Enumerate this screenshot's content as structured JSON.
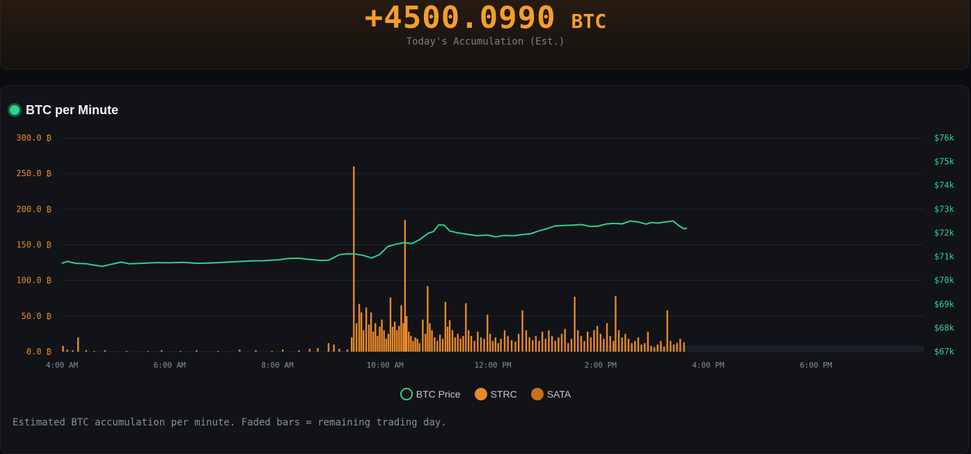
{
  "summary": {
    "total_value": "+4500.0990",
    "total_unit": "BTC",
    "subtitle": "Today's Accumulation (Est.)"
  },
  "panel": {
    "title": "BTC per Minute",
    "footnote": "Estimated BTC accumulation per minute. Faded bars = remaining trading day."
  },
  "legend": [
    {
      "label": "BTC Price",
      "color": "#2ed38a",
      "style": "ring"
    },
    {
      "label": "STRC",
      "color": "#e8892a",
      "style": "dot"
    },
    {
      "label": "SATA",
      "color": "#c9711a",
      "style": "dot"
    }
  ],
  "colors": {
    "price_line": "#2ed38a",
    "bars": "#e8892a",
    "left_axis": "#e8892a",
    "right_axis": "#2ed38a",
    "grid": "#23262d",
    "faded_area": "#1a1f27"
  },
  "chart_data": {
    "type": "bar",
    "x_unit": "hours",
    "x_domain": [
      4,
      20
    ],
    "x_ticks": [
      {
        "value": 4,
        "label": "4:00 AM"
      },
      {
        "value": 6,
        "label": "6:00 AM"
      },
      {
        "value": 8,
        "label": "8:00 AM"
      },
      {
        "value": 10,
        "label": "10:00 AM"
      },
      {
        "value": 12,
        "label": "12:00 PM"
      },
      {
        "value": 14,
        "label": "2:00 PM"
      },
      {
        "value": 16,
        "label": "4:00 PM"
      },
      {
        "value": 18,
        "label": "6:00 PM"
      }
    ],
    "y_left": {
      "ylim": [
        0,
        300
      ],
      "ticks": [
        {
          "value": 0,
          "label": "0.0 ₿"
        },
        {
          "value": 50,
          "label": "50.0 ₿"
        },
        {
          "value": 100,
          "label": "100.0 ₿"
        },
        {
          "value": 150,
          "label": "150.0 ₿"
        },
        {
          "value": 200,
          "label": "200.0 ₿"
        },
        {
          "value": 250,
          "label": "250.0 ₿"
        },
        {
          "value": 300,
          "label": "300.0 ₿"
        }
      ]
    },
    "y_right": {
      "ylim": [
        67000,
        76000
      ],
      "ticks": [
        {
          "value": 67000,
          "label": "$67k"
        },
        {
          "value": 68000,
          "label": "$68k"
        },
        {
          "value": 69000,
          "label": "$69k"
        },
        {
          "value": 70000,
          "label": "$70k"
        },
        {
          "value": 71000,
          "label": "$71k"
        },
        {
          "value": 72000,
          "label": "$72k"
        },
        {
          "value": 73000,
          "label": "$73k"
        },
        {
          "value": 74000,
          "label": "$74k"
        },
        {
          "value": 75000,
          "label": "$75k"
        },
        {
          "value": 76000,
          "label": "$76k"
        }
      ]
    },
    "faded_from": 14.0,
    "series": [
      {
        "name": "BTC Price",
        "type": "line",
        "axis": "right",
        "points": [
          [
            4.0,
            70720
          ],
          [
            4.1,
            70800
          ],
          [
            4.25,
            70720
          ],
          [
            4.45,
            70700
          ],
          [
            4.6,
            70640
          ],
          [
            4.75,
            70590
          ],
          [
            4.9,
            70670
          ],
          [
            5.0,
            70720
          ],
          [
            5.1,
            70770
          ],
          [
            5.25,
            70700
          ],
          [
            5.5,
            70720
          ],
          [
            5.75,
            70750
          ],
          [
            6.0,
            70740
          ],
          [
            6.25,
            70760
          ],
          [
            6.5,
            70720
          ],
          [
            6.75,
            70730
          ],
          [
            7.0,
            70760
          ],
          [
            7.25,
            70790
          ],
          [
            7.5,
            70820
          ],
          [
            7.75,
            70830
          ],
          [
            8.0,
            70860
          ],
          [
            8.2,
            70920
          ],
          [
            8.4,
            70930
          ],
          [
            8.6,
            70880
          ],
          [
            8.8,
            70840
          ],
          [
            8.95,
            70850
          ],
          [
            9.05,
            70960
          ],
          [
            9.15,
            71080
          ],
          [
            9.3,
            71120
          ],
          [
            9.45,
            71110
          ],
          [
            9.6,
            71050
          ],
          [
            9.75,
            70940
          ],
          [
            9.9,
            71090
          ],
          [
            10.05,
            71430
          ],
          [
            10.2,
            71520
          ],
          [
            10.35,
            71590
          ],
          [
            10.5,
            71550
          ],
          [
            10.65,
            71730
          ],
          [
            10.8,
            71980
          ],
          [
            10.9,
            72060
          ],
          [
            11.0,
            72340
          ],
          [
            11.1,
            72320
          ],
          [
            11.2,
            72080
          ],
          [
            11.35,
            72000
          ],
          [
            11.5,
            71950
          ],
          [
            11.7,
            71880
          ],
          [
            11.9,
            71910
          ],
          [
            12.05,
            71830
          ],
          [
            12.2,
            71890
          ],
          [
            12.4,
            71880
          ],
          [
            12.55,
            71930
          ],
          [
            12.7,
            71960
          ],
          [
            12.85,
            72080
          ],
          [
            13.0,
            72170
          ],
          [
            13.15,
            72290
          ],
          [
            13.3,
            72310
          ],
          [
            13.5,
            72330
          ],
          [
            13.65,
            72350
          ],
          [
            13.8,
            72270
          ],
          [
            13.95,
            72280
          ],
          [
            14.1,
            72370
          ],
          [
            14.25,
            72400
          ],
          [
            14.4,
            72380
          ],
          [
            14.55,
            72500
          ],
          [
            14.7,
            72460
          ],
          [
            14.85,
            72370
          ],
          [
            14.95,
            72440
          ],
          [
            15.05,
            72410
          ],
          [
            15.2,
            72460
          ],
          [
            15.35,
            72500
          ],
          [
            15.45,
            72310
          ],
          [
            15.55,
            72170
          ],
          [
            15.6,
            72200
          ]
        ]
      },
      {
        "name": "STRC",
        "type": "bar",
        "axis": "left",
        "points": [
          [
            4.02,
            8
          ],
          [
            4.1,
            3
          ],
          [
            4.2,
            2
          ],
          [
            4.3,
            20
          ],
          [
            4.45,
            2
          ],
          [
            4.6,
            1
          ],
          [
            4.8,
            2
          ],
          [
            5.2,
            1
          ],
          [
            5.6,
            1
          ],
          [
            5.85,
            2
          ],
          [
            6.2,
            1
          ],
          [
            6.5,
            2
          ],
          [
            6.9,
            1
          ],
          [
            7.3,
            3
          ],
          [
            7.6,
            2
          ],
          [
            7.9,
            1
          ],
          [
            8.1,
            3
          ],
          [
            8.4,
            2
          ],
          [
            8.6,
            4
          ],
          [
            8.75,
            5
          ],
          [
            8.95,
            12
          ],
          [
            9.05,
            10
          ],
          [
            9.15,
            4
          ],
          [
            9.3,
            3
          ],
          [
            9.38,
            20
          ],
          [
            9.42,
            260
          ],
          [
            9.47,
            40
          ],
          [
            9.52,
            67
          ],
          [
            9.56,
            55
          ],
          [
            9.6,
            30
          ],
          [
            9.65,
            62
          ],
          [
            9.7,
            38
          ],
          [
            9.74,
            55
          ],
          [
            9.78,
            28
          ],
          [
            9.82,
            40
          ],
          [
            9.86,
            22
          ],
          [
            9.9,
            35
          ],
          [
            9.94,
            45
          ],
          [
            9.98,
            30
          ],
          [
            10.02,
            18
          ],
          [
            10.06,
            25
          ],
          [
            10.1,
            76
          ],
          [
            10.14,
            35
          ],
          [
            10.18,
            42
          ],
          [
            10.22,
            30
          ],
          [
            10.26,
            36
          ],
          [
            10.3,
            65
          ],
          [
            10.34,
            40
          ],
          [
            10.37,
            185
          ],
          [
            10.4,
            50
          ],
          [
            10.44,
            28
          ],
          [
            10.48,
            22
          ],
          [
            10.52,
            15
          ],
          [
            10.56,
            20
          ],
          [
            10.6,
            18
          ],
          [
            10.64,
            12
          ],
          [
            10.7,
            45
          ],
          [
            10.75,
            25
          ],
          [
            10.79,
            92
          ],
          [
            10.83,
            40
          ],
          [
            10.87,
            30
          ],
          [
            10.92,
            20
          ],
          [
            10.97,
            15
          ],
          [
            11.02,
            24
          ],
          [
            11.07,
            18
          ],
          [
            11.12,
            70
          ],
          [
            11.16,
            35
          ],
          [
            11.2,
            44
          ],
          [
            11.25,
            30
          ],
          [
            11.3,
            20
          ],
          [
            11.35,
            25
          ],
          [
            11.4,
            18
          ],
          [
            11.45,
            22
          ],
          [
            11.5,
            68
          ],
          [
            11.55,
            30
          ],
          [
            11.6,
            22
          ],
          [
            11.66,
            15
          ],
          [
            11.72,
            28
          ],
          [
            11.78,
            20
          ],
          [
            11.84,
            18
          ],
          [
            11.9,
            52
          ],
          [
            11.95,
            25
          ],
          [
            12.0,
            15
          ],
          [
            12.05,
            20
          ],
          [
            12.1,
            12
          ],
          [
            12.15,
            18
          ],
          [
            12.22,
            30
          ],
          [
            12.28,
            22
          ],
          [
            12.35,
            16
          ],
          [
            12.42,
            14
          ],
          [
            12.48,
            25
          ],
          [
            12.55,
            58
          ],
          [
            12.62,
            30
          ],
          [
            12.68,
            20
          ],
          [
            12.74,
            16
          ],
          [
            12.8,
            22
          ],
          [
            12.86,
            15
          ],
          [
            12.92,
            28
          ],
          [
            12.98,
            18
          ],
          [
            13.04,
            30
          ],
          [
            13.1,
            22
          ],
          [
            13.16,
            15
          ],
          [
            13.22,
            20
          ],
          [
            13.28,
            25
          ],
          [
            13.34,
            32
          ],
          [
            13.4,
            12
          ],
          [
            13.46,
            18
          ],
          [
            13.52,
            77
          ],
          [
            13.58,
            30
          ],
          [
            13.64,
            22
          ],
          [
            13.7,
            15
          ],
          [
            13.76,
            28
          ],
          [
            13.82,
            20
          ],
          [
            13.88,
            30
          ],
          [
            13.94,
            36
          ],
          [
            14.0,
            25
          ],
          [
            14.06,
            18
          ],
          [
            14.12,
            40
          ],
          [
            14.18,
            22
          ],
          [
            14.24,
            15
          ],
          [
            14.28,
            78
          ],
          [
            14.34,
            30
          ],
          [
            14.4,
            20
          ],
          [
            14.46,
            25
          ],
          [
            14.52,
            18
          ],
          [
            14.58,
            12
          ],
          [
            14.64,
            15
          ],
          [
            14.7,
            20
          ],
          [
            14.76,
            10
          ],
          [
            14.82,
            12
          ],
          [
            14.88,
            28
          ],
          [
            14.94,
            8
          ],
          [
            15.0,
            6
          ],
          [
            15.06,
            10
          ],
          [
            15.12,
            15
          ],
          [
            15.18,
            7
          ],
          [
            15.24,
            58
          ],
          [
            15.3,
            15
          ],
          [
            15.36,
            10
          ],
          [
            15.42,
            12
          ],
          [
            15.48,
            18
          ],
          [
            15.55,
            13
          ]
        ]
      }
    ]
  }
}
